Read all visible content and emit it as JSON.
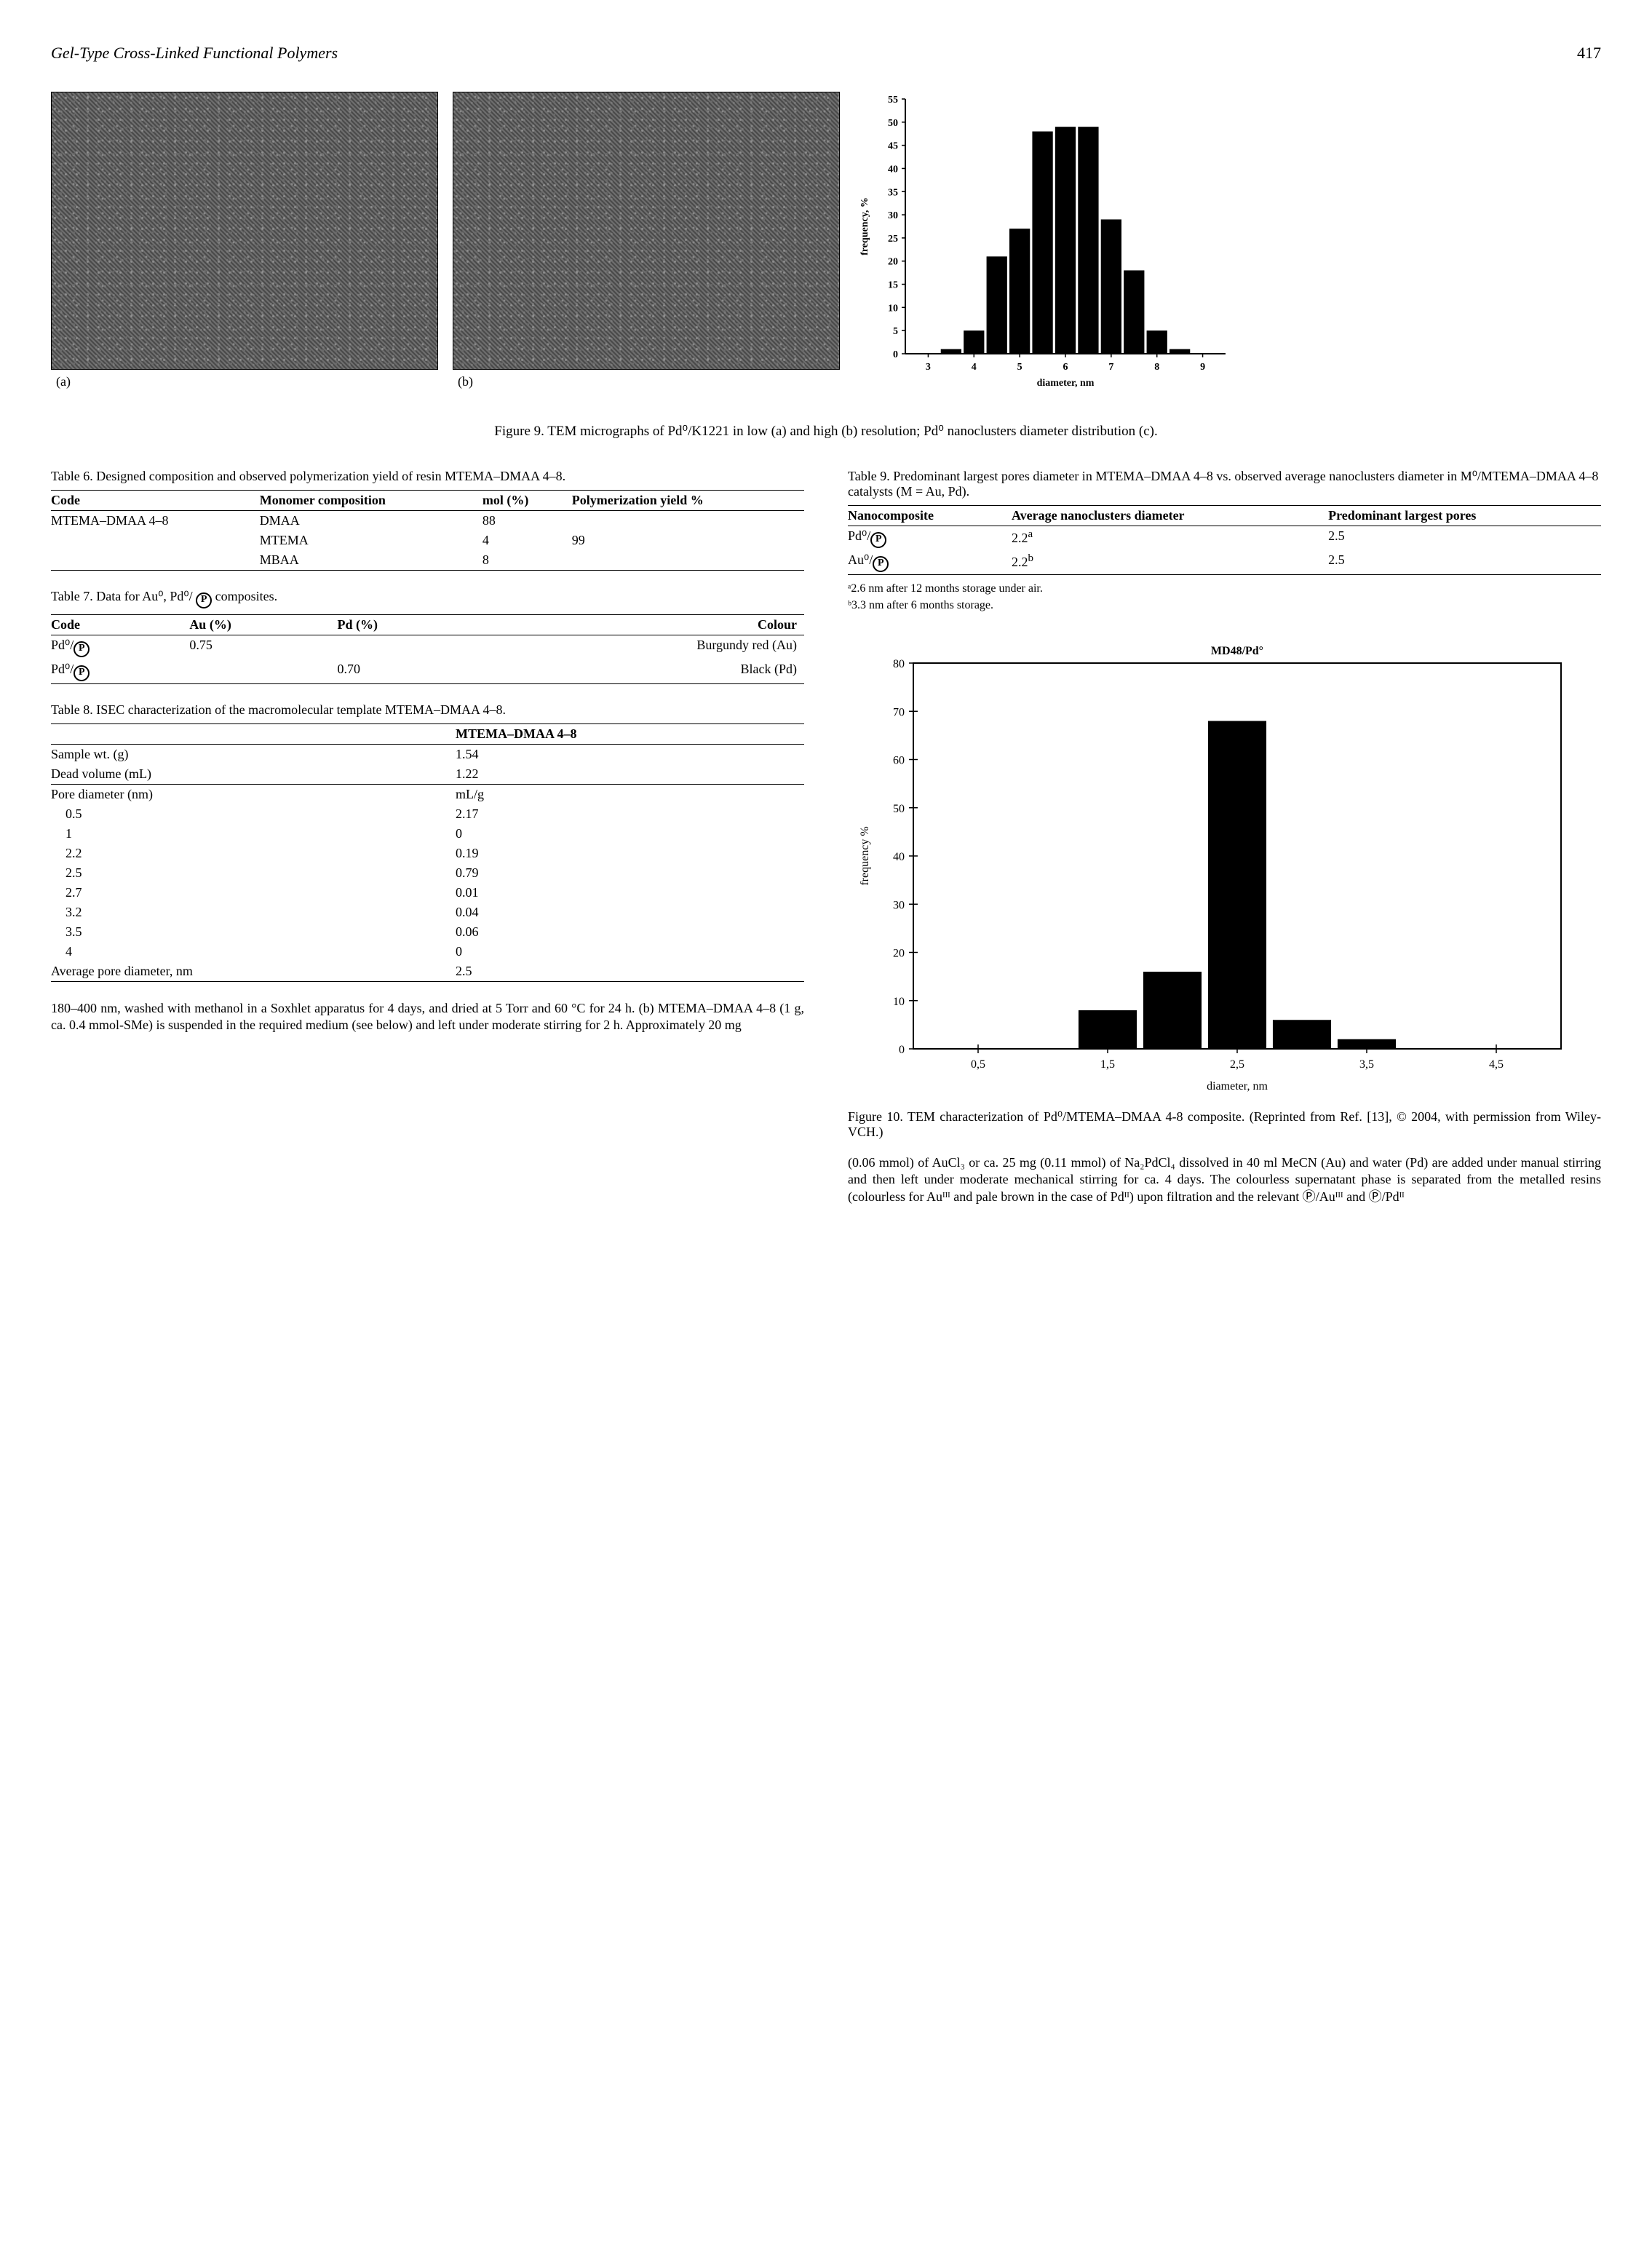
{
  "page": {
    "running_title": "Gel-Type Cross-Linked Functional Polymers",
    "page_number": "417"
  },
  "figure9": {
    "label_a": "(a)",
    "label_b": "(b)",
    "caption": "Figure 9.   TEM micrographs of Pd⁰/K1221 in low (a) and high (b) resolution; Pd⁰ nanoclusters diameter distribution (c).",
    "histogram": {
      "type": "bar",
      "x_label": "diameter, nm",
      "y_label": "frequency, %",
      "x_ticks": [
        3,
        4,
        5,
        6,
        7,
        8,
        9
      ],
      "y_ticks": [
        0,
        5,
        10,
        15,
        20,
        25,
        30,
        35,
        40,
        45,
        50,
        55
      ],
      "ylim": [
        0,
        55
      ],
      "xlim": [
        2.5,
        9.5
      ],
      "bins": [
        {
          "x": 3.5,
          "h": 1
        },
        {
          "x": 4.0,
          "h": 5
        },
        {
          "x": 4.5,
          "h": 21
        },
        {
          "x": 5.0,
          "h": 27
        },
        {
          "x": 5.5,
          "h": 48
        },
        {
          "x": 6.0,
          "h": 49
        },
        {
          "x": 6.5,
          "h": 49
        },
        {
          "x": 7.0,
          "h": 29
        },
        {
          "x": 7.5,
          "h": 18
        },
        {
          "x": 8.0,
          "h": 5
        },
        {
          "x": 8.5,
          "h": 1
        }
      ],
      "bar_color": "#000000",
      "bar_width": 0.45,
      "background_color": "#ffffff",
      "axis_color": "#000000",
      "label_fontsize": 14,
      "tick_fontsize": 14
    }
  },
  "table6": {
    "caption": "Table 6. Designed composition and observed polymerization yield of resin MTEMA–DMAA 4–8.",
    "columns": [
      "Code",
      "Monomer composition",
      "mol (%)",
      "Polymerization yield %"
    ],
    "rows": [
      [
        "MTEMA–DMAA 4–8",
        "DMAA",
        "88",
        ""
      ],
      [
        "",
        "MTEMA",
        "4",
        "99"
      ],
      [
        "",
        "MBAA",
        "8",
        ""
      ]
    ]
  },
  "table7": {
    "caption_prefix": "Table 7.  Data for Au⁰, Pd⁰/ ",
    "caption_suffix": " composites.",
    "columns": [
      "Code",
      "Au (%)",
      "Pd (%)",
      "Colour"
    ],
    "rows": [
      {
        "code_prefix": "Pd⁰/",
        "au": "0.75",
        "pd": "",
        "colour": "Burgundy red (Au)"
      },
      {
        "code_prefix": "Pd⁰/",
        "au": "",
        "pd": "0.70",
        "colour": "Black (Pd)"
      }
    ]
  },
  "table8": {
    "caption": "Table 8. ISEC characterization of the macromolecular template MTEMA–DMAA 4–8.",
    "header_right": "MTEMA–DMAA 4–8",
    "rows_top": [
      [
        "Sample wt. (g)",
        "1.54"
      ],
      [
        "Dead volume (mL)",
        "1.22"
      ]
    ],
    "rows_mid_header": [
      "Pore diameter (nm)",
      "mL/g"
    ],
    "rows_mid": [
      [
        "0.5",
        "2.17"
      ],
      [
        "1",
        "0"
      ],
      [
        "2.2",
        "0.19"
      ],
      [
        "2.5",
        "0.79"
      ],
      [
        "2.7",
        "0.01"
      ],
      [
        "3.2",
        "0.04"
      ],
      [
        "3.5",
        "0.06"
      ],
      [
        "4",
        "0"
      ]
    ],
    "avg_row": [
      "Average pore diameter, nm",
      "2.5"
    ]
  },
  "table9": {
    "caption": "Table 9. Predominant largest pores diameter in MTEMA–DMAA 4–8 vs. observed average nanoclusters diameter in M⁰/MTEMA–DMAA 4–8 catalysts (M = Au, Pd).",
    "columns": [
      "Nanocomposite",
      "Average nanoclusters diameter",
      "Predominant largest pores"
    ],
    "rows": [
      {
        "code_prefix": "Pd⁰/",
        "avg": "2.2",
        "sup": "a",
        "pores": "2.5"
      },
      {
        "code_prefix": "Au⁰/",
        "avg": "2.2",
        "sup": "b",
        "pores": "2.5"
      }
    ],
    "footnote_a": "ᵃ2.6 nm after 12 months storage under air.",
    "footnote_b": "ᵇ3.3 nm after 6 months storage."
  },
  "figure10": {
    "title": "MD48/Pd°",
    "caption": "Figure 10.   TEM characterization of Pd⁰/MTEMA–DMAA 4-8 composite. (Reprinted from Ref. [13], © 2004, with permission from Wiley-VCH.)",
    "chart": {
      "type": "bar",
      "x_label": "diameter, nm",
      "y_label": "frequency %",
      "x_ticks": [
        "0,5",
        "1,5",
        "2,5",
        "3,5",
        "4,5"
      ],
      "x_tick_vals": [
        0.5,
        1.5,
        2.5,
        3.5,
        4.5
      ],
      "y_ticks": [
        0,
        10,
        20,
        30,
        40,
        50,
        60,
        70,
        80
      ],
      "ylim": [
        0,
        80
      ],
      "xlim": [
        0,
        5
      ],
      "bins": [
        {
          "x": 1.5,
          "h": 8
        },
        {
          "x": 2.0,
          "h": 16
        },
        {
          "x": 2.5,
          "h": 68
        },
        {
          "x": 3.0,
          "h": 6
        },
        {
          "x": 3.5,
          "h": 2
        }
      ],
      "bar_color": "#000000",
      "bar_width": 0.45,
      "background_color": "#ffffff",
      "axis_color": "#000000",
      "label_fontsize": 16,
      "tick_fontsize": 16,
      "title_fontsize": 16,
      "border": true
    }
  },
  "body_left": "180–400 nm, washed with methanol in a Soxhlet apparatus for 4 days, and dried at 5 Torr and 60 °C for 24 h. (b) MTEMA–DMAA 4–8 (1 g, ca. 0.4 mmol-SMe) is suspended in the required medium (see below) and left under moderate stirring for 2 h. Approximately 20 mg",
  "body_right": "(0.06 mmol) of AuCl₃ or ca. 25 mg (0.11 mmol) of Na₂PdCl₄ dissolved in 40 ml MeCN (Au) and water (Pd) are added under manual stirring and then left under moderate mechanical stirring for ca. 4 days. The colourless supernatant phase is separated from the metalled resins (colourless for Auᴵᴵᴵ and pale brown in the case of Pdᴵᴵ) upon filtration and the relevant Ⓟ/Auᴵᴵᴵ and Ⓟ/Pdᴵᴵ"
}
